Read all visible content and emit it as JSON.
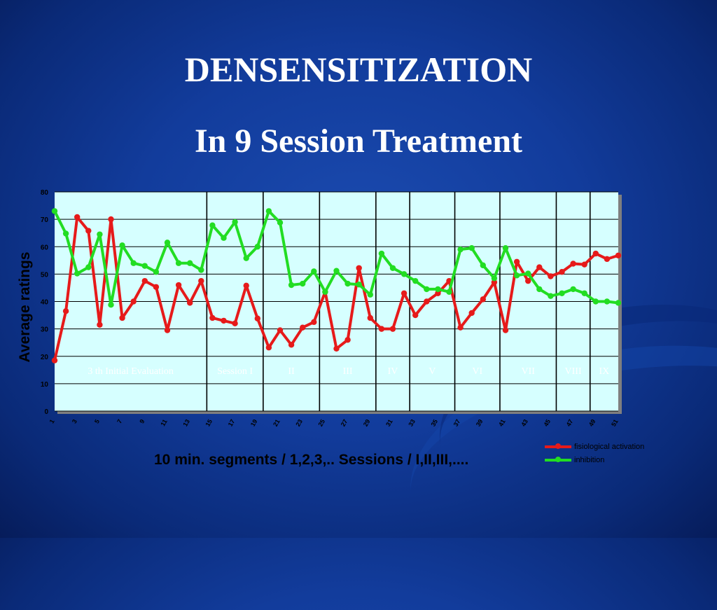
{
  "slide": {
    "title": "DENSENSITIZATION",
    "subtitle": "In  9 Session Treatment"
  },
  "colors": {
    "red_series": "#e61a1a",
    "green_series": "#22dd22",
    "plot_background": "#d6ffff"
  },
  "chart_data": {
    "type": "line",
    "ylabel": "Average ratings",
    "xlabel": "10 min. segments / 1,2,3,.. Sessions / I,II,III,....",
    "ylim": [
      0,
      80
    ],
    "yticks": [
      0,
      10,
      20,
      30,
      40,
      50,
      60,
      70,
      80
    ],
    "grid": true,
    "legend_position": "bottom-right",
    "x": [
      1,
      2,
      3,
      4,
      5,
      6,
      7,
      8,
      9,
      10,
      11,
      12,
      13,
      14,
      15,
      16,
      17,
      18,
      19,
      20,
      21,
      22,
      23,
      24,
      25,
      26,
      27,
      28,
      29,
      30,
      31,
      32,
      33,
      34,
      35,
      36,
      37,
      38,
      39,
      40,
      41,
      42,
      43,
      44,
      45,
      46,
      47,
      48,
      49,
      50,
      51
    ],
    "xtick_labels": [
      "1",
      "3",
      "5",
      "7",
      "9",
      "11",
      "13",
      "15",
      "17",
      "19",
      "21",
      "23",
      "25",
      "27",
      "29",
      "31",
      "33",
      "35",
      "37",
      "39",
      "41",
      "43",
      "45",
      "47",
      "49",
      "51"
    ],
    "session_dividers_after_x": [
      14,
      19,
      24,
      29,
      32,
      36,
      40,
      45,
      48
    ],
    "session_labels": [
      "3 th Initial Evaluation",
      "Session I",
      "II",
      "III",
      "IV",
      "V",
      "VI",
      "VII",
      "VIII",
      "IX"
    ],
    "series": [
      {
        "name": "fisiological activation",
        "color": "#e61a1a",
        "values": [
          18.5,
          36.5,
          70.8,
          65.8,
          31.5,
          70,
          34,
          40,
          47.5,
          45.3,
          29.5,
          46,
          39.5,
          47.5,
          34,
          33,
          32,
          45.8,
          33.8,
          23.2,
          29.5,
          24.2,
          30.5,
          32.5,
          43.5,
          22.8,
          26,
          52.2,
          34,
          30,
          30,
          43,
          35,
          40,
          43,
          47.5,
          30.5,
          35.8,
          40.8,
          47,
          29.5,
          54.5,
          47.5,
          52.5,
          49.2,
          50.8,
          53.8,
          53.5,
          57.5,
          55.5,
          56.8
        ]
      },
      {
        "name": "inhibition",
        "color": "#22dd22",
        "values": [
          73,
          64.8,
          50.2,
          52.5,
          64.5,
          38.8,
          60.5,
          54,
          53,
          50.8,
          61.5,
          54,
          54,
          51.5,
          67.8,
          63.2,
          69,
          55.8,
          60,
          73,
          68.8,
          46,
          46.5,
          51,
          43.5,
          51.2,
          46.5,
          46.2,
          42.5,
          57.5,
          52.2,
          50,
          47.5,
          44.5,
          44.5,
          43.5,
          59,
          59.5,
          53.2,
          48.5,
          59.5,
          49.5,
          50.2,
          44.5,
          42,
          43,
          44.5,
          43,
          40,
          40,
          39.5
        ]
      }
    ]
  }
}
